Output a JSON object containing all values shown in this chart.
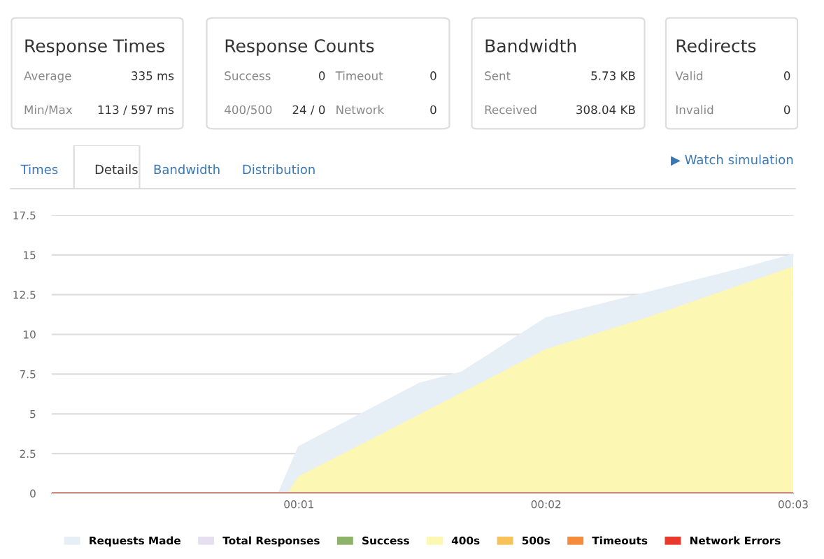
{
  "chart_data": [
    {
      "type": "other",
      "title": "Response Times",
      "annotations": [
        "Average",
        "335 ms",
        "Min/Max",
        "113 / 597 ms"
      ]
    },
    {
      "type": "other",
      "title": "Response Counts",
      "annotations": [
        "Success",
        "0",
        "Timeout",
        "0",
        "400/500",
        "24 / 0",
        "Network",
        "0"
      ]
    },
    {
      "type": "other",
      "title": "Bandwidth",
      "annotations": [
        "Sent",
        "5.73 KB",
        "Received",
        "308.04 KB"
      ]
    },
    {
      "type": "other",
      "title": "Redirects",
      "annotations": [
        "Valid",
        "0",
        "Invalid",
        "0"
      ]
    },
    {
      "type": "other",
      "annotations": [
        "Times",
        "Details",
        "Bandwidth",
        "Distribution",
        "▶ Watch simulation"
      ]
    },
    {
      "type": "area",
      "xlim": [
        0,
        3
      ],
      "xticks": [
        {
          "value": 1,
          "label": "00:01"
        },
        {
          "value": 2,
          "label": "00:02"
        },
        {
          "value": 3,
          "label": "00:03"
        }
      ],
      "ylim": [
        0,
        17.5
      ],
      "yticks": [
        0,
        2.5,
        5,
        7.5,
        10,
        12.5,
        15,
        17.5
      ],
      "grid": "y",
      "legend": "bottom",
      "series": [
        {
          "name": "Requests Made",
          "color": "#e6eef6",
          "x": [
            0,
            0.92,
            1,
            1.49,
            1.66,
            2,
            2.41,
            2.79,
            3
          ],
          "values": [
            0,
            0,
            2.9,
            6.9,
            7.6,
            11,
            12.6,
            14.1,
            15
          ]
        },
        {
          "name": "Total Responses",
          "type": "line",
          "color": "#e6dff0"
        },
        {
          "name": "Success",
          "type": "line",
          "color": "#8db36a"
        },
        {
          "name": "400s",
          "color": "#fdf7b4",
          "x": [
            0,
            0.96,
            1,
            1.49,
            2,
            2.41,
            3
          ],
          "values": [
            0,
            0,
            1,
            4.9,
            9,
            11,
            14.2
          ]
        },
        {
          "name": "500s",
          "type": "line",
          "color": "#f7c359"
        },
        {
          "name": "Timeouts",
          "type": "line",
          "color": "#f58b3c"
        },
        {
          "name": "Network Errors",
          "type": "line",
          "color": "#e8392b",
          "x": [
            0,
            3
          ],
          "values": [
            0,
            0
          ]
        }
      ]
    }
  ]
}
